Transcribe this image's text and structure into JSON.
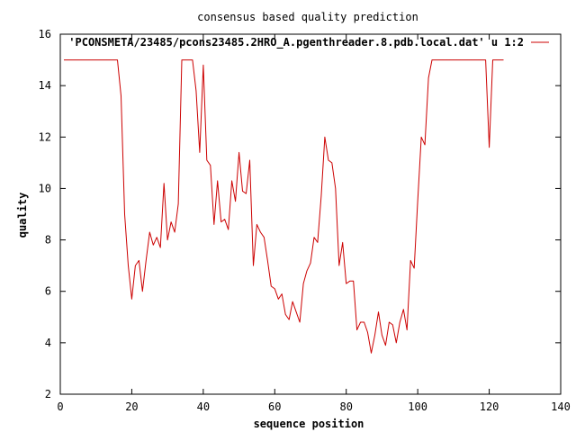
{
  "chart_data": {
    "type": "line",
    "title": "consensus based quality prediction",
    "xlabel": "sequence position",
    "ylabel": "quality",
    "xlim": [
      0,
      140
    ],
    "ylim": [
      2,
      16
    ],
    "x_ticks": [
      0,
      20,
      40,
      60,
      80,
      100,
      120,
      140
    ],
    "y_ticks": [
      2,
      4,
      6,
      8,
      10,
      12,
      14,
      16
    ],
    "grid": false,
    "legend_position": "top-right",
    "series": [
      {
        "name": "'PCONSMETA/23485/pcons23485.2HRO_A.pgenthreader.8.pdb.local.dat' u 1:2",
        "color": "#cc0000",
        "x": [
          1,
          2,
          3,
          4,
          5,
          6,
          7,
          8,
          9,
          10,
          11,
          12,
          13,
          14,
          15,
          16,
          17,
          18,
          19,
          20,
          21,
          22,
          23,
          24,
          25,
          26,
          27,
          28,
          29,
          30,
          31,
          32,
          33,
          34,
          35,
          36,
          37,
          38,
          39,
          40,
          41,
          42,
          43,
          44,
          45,
          46,
          47,
          48,
          49,
          50,
          51,
          52,
          53,
          54,
          55,
          56,
          57,
          58,
          59,
          60,
          61,
          62,
          63,
          64,
          65,
          66,
          67,
          68,
          69,
          70,
          71,
          72,
          73,
          74,
          75,
          76,
          77,
          78,
          79,
          80,
          81,
          82,
          83,
          84,
          85,
          86,
          87,
          88,
          89,
          90,
          91,
          92,
          93,
          94,
          95,
          96,
          97,
          98,
          99,
          100,
          101,
          102,
          103,
          104,
          105,
          106,
          107,
          108,
          109,
          110,
          111,
          112,
          113,
          114,
          115,
          116,
          117,
          118,
          119,
          120,
          121,
          122,
          123,
          124
        ],
        "values": [
          15,
          15,
          15,
          15,
          15,
          15,
          15,
          15,
          15,
          15,
          15,
          15,
          15,
          15,
          15,
          15,
          13.6,
          9,
          7,
          5.7,
          7,
          7.2,
          6,
          7.2,
          8.3,
          7.8,
          8.1,
          7.7,
          10.2,
          8,
          8.7,
          8.3,
          9.4,
          15,
          15,
          15,
          15,
          13.8,
          11.4,
          14.8,
          11.1,
          10.9,
          8.6,
          10.3,
          8.7,
          8.8,
          8.4,
          10.3,
          9.5,
          11.4,
          9.9,
          9.8,
          11.1,
          7,
          8.6,
          8.3,
          8.1,
          7.2,
          6.2,
          6.1,
          5.7,
          5.9,
          5.1,
          4.9,
          5.6,
          5.2,
          4.8,
          6.3,
          6.8,
          7.1,
          8.1,
          7.9,
          9.7,
          12,
          11.1,
          11,
          10,
          7,
          7.9,
          6.3,
          6.4,
          6.4,
          4.5,
          4.8,
          4.8,
          4.4,
          3.6,
          4.3,
          5.2,
          4.3,
          3.9,
          4.8,
          4.7,
          4,
          4.8,
          5.3,
          4.5,
          7.2,
          6.9,
          9.5,
          12,
          11.7,
          14.3,
          15,
          15,
          15,
          15,
          15,
          15,
          15,
          15,
          15,
          15,
          15,
          15,
          15,
          15,
          15,
          15,
          11.6,
          15,
          15,
          15,
          15
        ]
      }
    ]
  }
}
